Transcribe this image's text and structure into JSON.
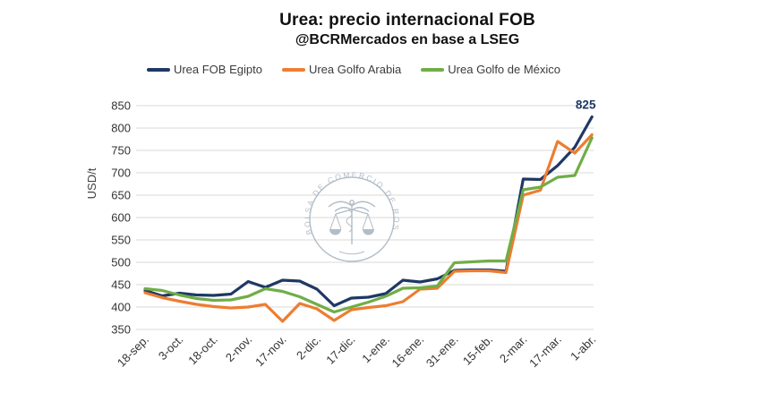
{
  "title": "Urea: precio internacional FOB",
  "subtitle": "@BCRMercados en base a LSEG",
  "watermark": {
    "text": "BOLSA DE COMERCIO DE ROSARIO"
  },
  "colors": {
    "egipto": "#1F3864",
    "golfo_arabia": "#ED7D31",
    "golfo_mexico": "#70AD47",
    "gridline": "#D9D9D9",
    "watermark": "#A9B6C2"
  },
  "chart_data": {
    "type": "line",
    "title": "Urea: precio internacional FOB",
    "subtitle": "@BCRMercados en base a LSEG",
    "ylabel": "USD/t",
    "xlabel": "",
    "ylim": [
      350,
      850
    ],
    "ytick_step": 50,
    "grid": "horizontal",
    "legend_position": "top",
    "x_labels": [
      "18-sep.",
      "3-oct.",
      "18-oct.",
      "2-nov.",
      "17-nov.",
      "2-dic.",
      "17-dic.",
      "1-ene.",
      "16-ene.",
      "31-ene.",
      "15-feb.",
      "2-mar.",
      "17-mar.",
      "1-abr."
    ],
    "points_per_label": 2,
    "series": [
      {
        "name": "Urea FOB Egipto",
        "color": "#1F3864",
        "values": [
          437,
          425,
          431,
          427,
          426,
          429,
          457,
          444,
          460,
          458,
          440,
          403,
          420,
          422,
          430,
          460,
          456,
          463,
          482,
          483,
          483,
          480,
          686,
          685,
          716,
          757,
          825
        ]
      },
      {
        "name": "Urea Golfo Arabia",
        "color": "#ED7D31",
        "values": [
          432,
          421,
          413,
          406,
          401,
          398,
          400,
          406,
          368,
          408,
          396,
          370,
          394,
          399,
          403,
          412,
          440,
          442,
          480,
          481,
          481,
          477,
          650,
          661,
          770,
          744,
          785
        ]
      },
      {
        "name": "Urea Golfo de México",
        "color": "#70AD47",
        "values": [
          441,
          437,
          427,
          419,
          415,
          416,
          424,
          441,
          435,
          423,
          406,
          389,
          400,
          411,
          424,
          442,
          443,
          447,
          499,
          501,
          503,
          503,
          662,
          668,
          690,
          694,
          778
        ]
      }
    ],
    "annotation": {
      "text": "825",
      "series": "Urea FOB Egipto",
      "point_index": 26,
      "value": 825
    }
  }
}
